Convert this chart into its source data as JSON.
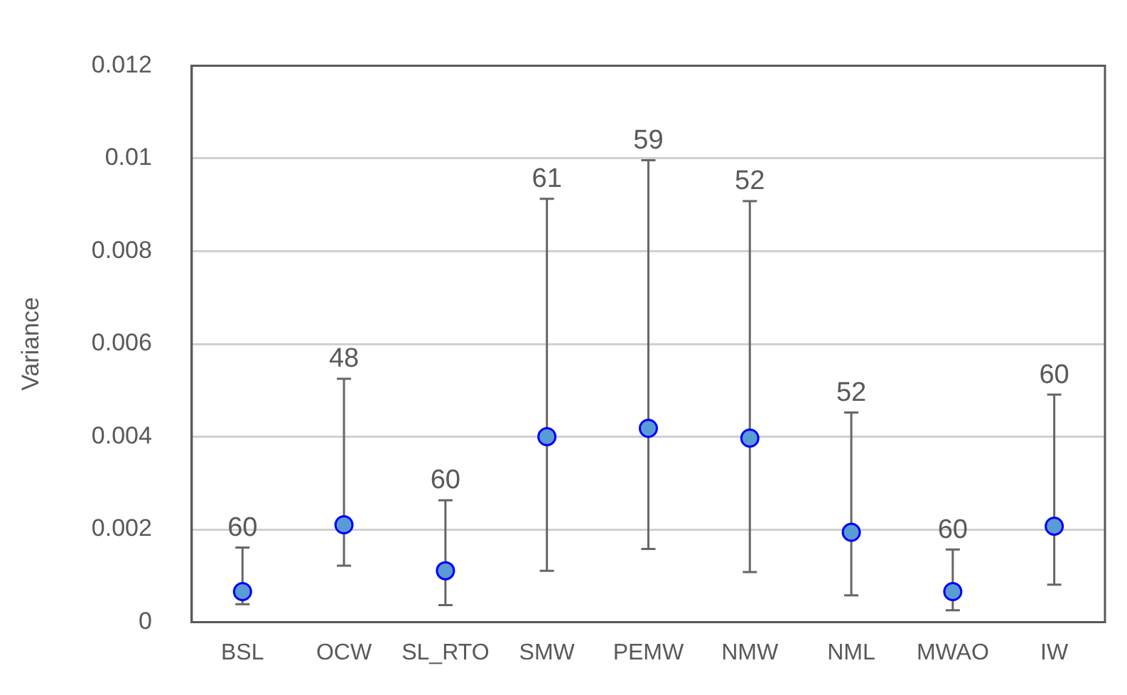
{
  "chart_data": {
    "type": "scatter",
    "ylabel": "Variance",
    "categories": [
      "BSL",
      "OCW",
      "SL_RTO",
      "SMW",
      "PEMW",
      "NMW",
      "NML",
      "MWAO",
      "IW"
    ],
    "series": [
      {
        "color": "#5b9bd5",
        "values": [
          0.00066,
          0.0021,
          0.00111,
          0.004,
          0.00418,
          0.00397,
          0.00194,
          0.00066,
          0.00207
        ],
        "errors": [
          [
            0.00039,
            0.00161
          ],
          [
            0.00122,
            0.00525
          ],
          [
            0.00037,
            0.00263
          ],
          [
            0.00111,
            0.00913
          ],
          [
            0.00158,
            0.00996
          ],
          [
            0.00108,
            0.00908
          ],
          [
            0.00058,
            0.00452
          ],
          [
            0.00026,
            0.00157
          ],
          [
            0.00081,
            0.00491
          ]
        ]
      }
    ],
    "ylim": [
      0,
      0.012
    ],
    "yticks": [
      0,
      0.002,
      0.004,
      0.006,
      0.008,
      0.01,
      0.012
    ],
    "grid": "y",
    "legend": false,
    "marker": "circle",
    "annotations": [
      {
        "text": "60",
        "x": "BSL",
        "y": 0.00161
      },
      {
        "text": "48",
        "x": "OCW",
        "y": 0.00525
      },
      {
        "text": "60",
        "x": "SL_RTO",
        "y": 0.00263
      },
      {
        "text": "61",
        "x": "SMW",
        "y": 0.00913
      },
      {
        "text": "59",
        "x": "PEMW",
        "y": 0.00996
      },
      {
        "text": "52",
        "x": "NMW",
        "y": 0.00908
      },
      {
        "text": "52",
        "x": "NML",
        "y": 0.00452
      },
      {
        "text": "60",
        "x": "MWAO",
        "y": 0.00157
      },
      {
        "text": "60",
        "x": "IW",
        "y": 0.00491
      }
    ]
  }
}
